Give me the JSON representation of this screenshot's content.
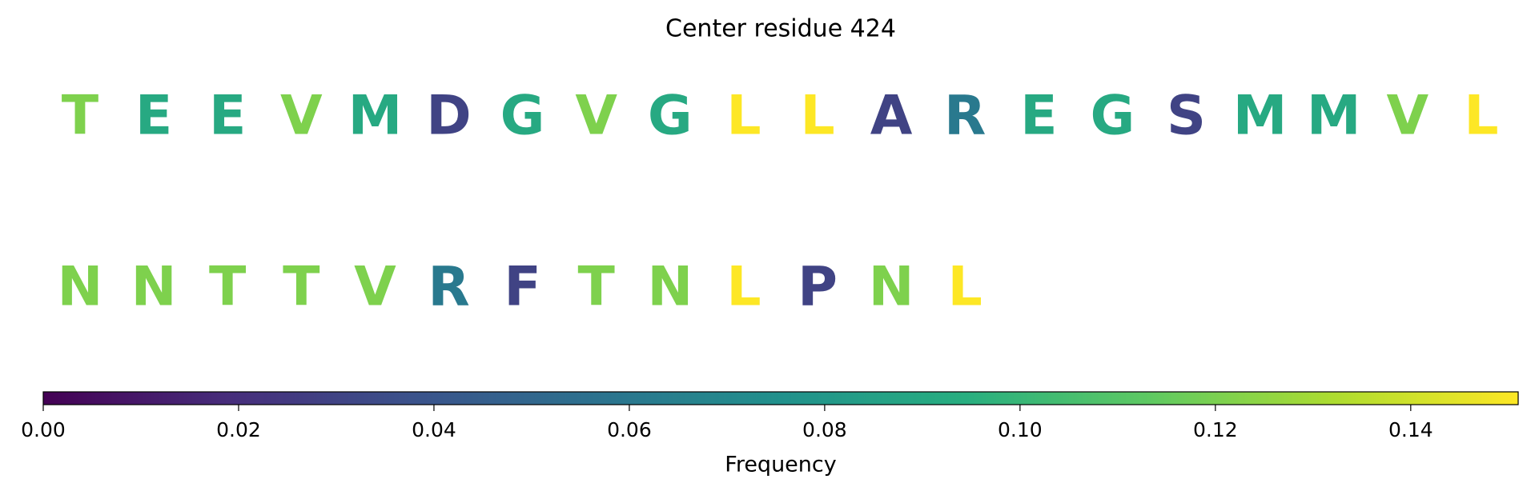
{
  "chart_data": {
    "type": "residue-colormap",
    "title": "Center residue 424",
    "categories": [
      "T",
      "E",
      "E",
      "V",
      "M",
      "D",
      "G",
      "V",
      "G",
      "L",
      "L",
      "A",
      "R",
      "E",
      "G",
      "S",
      "M",
      "M",
      "V",
      "L",
      "N",
      "N",
      "T",
      "T",
      "V",
      "R",
      "F",
      "T",
      "N",
      "L",
      "P",
      "N",
      "L"
    ],
    "values": [
      0.121,
      0.091,
      0.091,
      0.121,
      0.091,
      0.03,
      0.091,
      0.121,
      0.091,
      0.151,
      0.151,
      0.03,
      0.061,
      0.091,
      0.091,
      0.03,
      0.091,
      0.091,
      0.121,
      0.151,
      0.121,
      0.121,
      0.121,
      0.121,
      0.121,
      0.061,
      0.03,
      0.121,
      0.121,
      0.151,
      0.03,
      0.121,
      0.151
    ],
    "colormap": "viridis",
    "clim": [
      0,
      0.151
    ],
    "cticks": [
      {
        "value": 0,
        "label": "0.00"
      },
      {
        "value": 0.02,
        "label": "0.02"
      },
      {
        "value": 0.04,
        "label": "0.04"
      },
      {
        "value": 0.06,
        "label": "0.06"
      },
      {
        "value": 0.08,
        "label": "0.08"
      },
      {
        "value": 0.1,
        "label": "0.10"
      },
      {
        "value": 0.12,
        "label": "0.12"
      },
      {
        "value": 0.14,
        "label": "0.14"
      }
    ],
    "colorbar_label": "Frequency"
  }
}
